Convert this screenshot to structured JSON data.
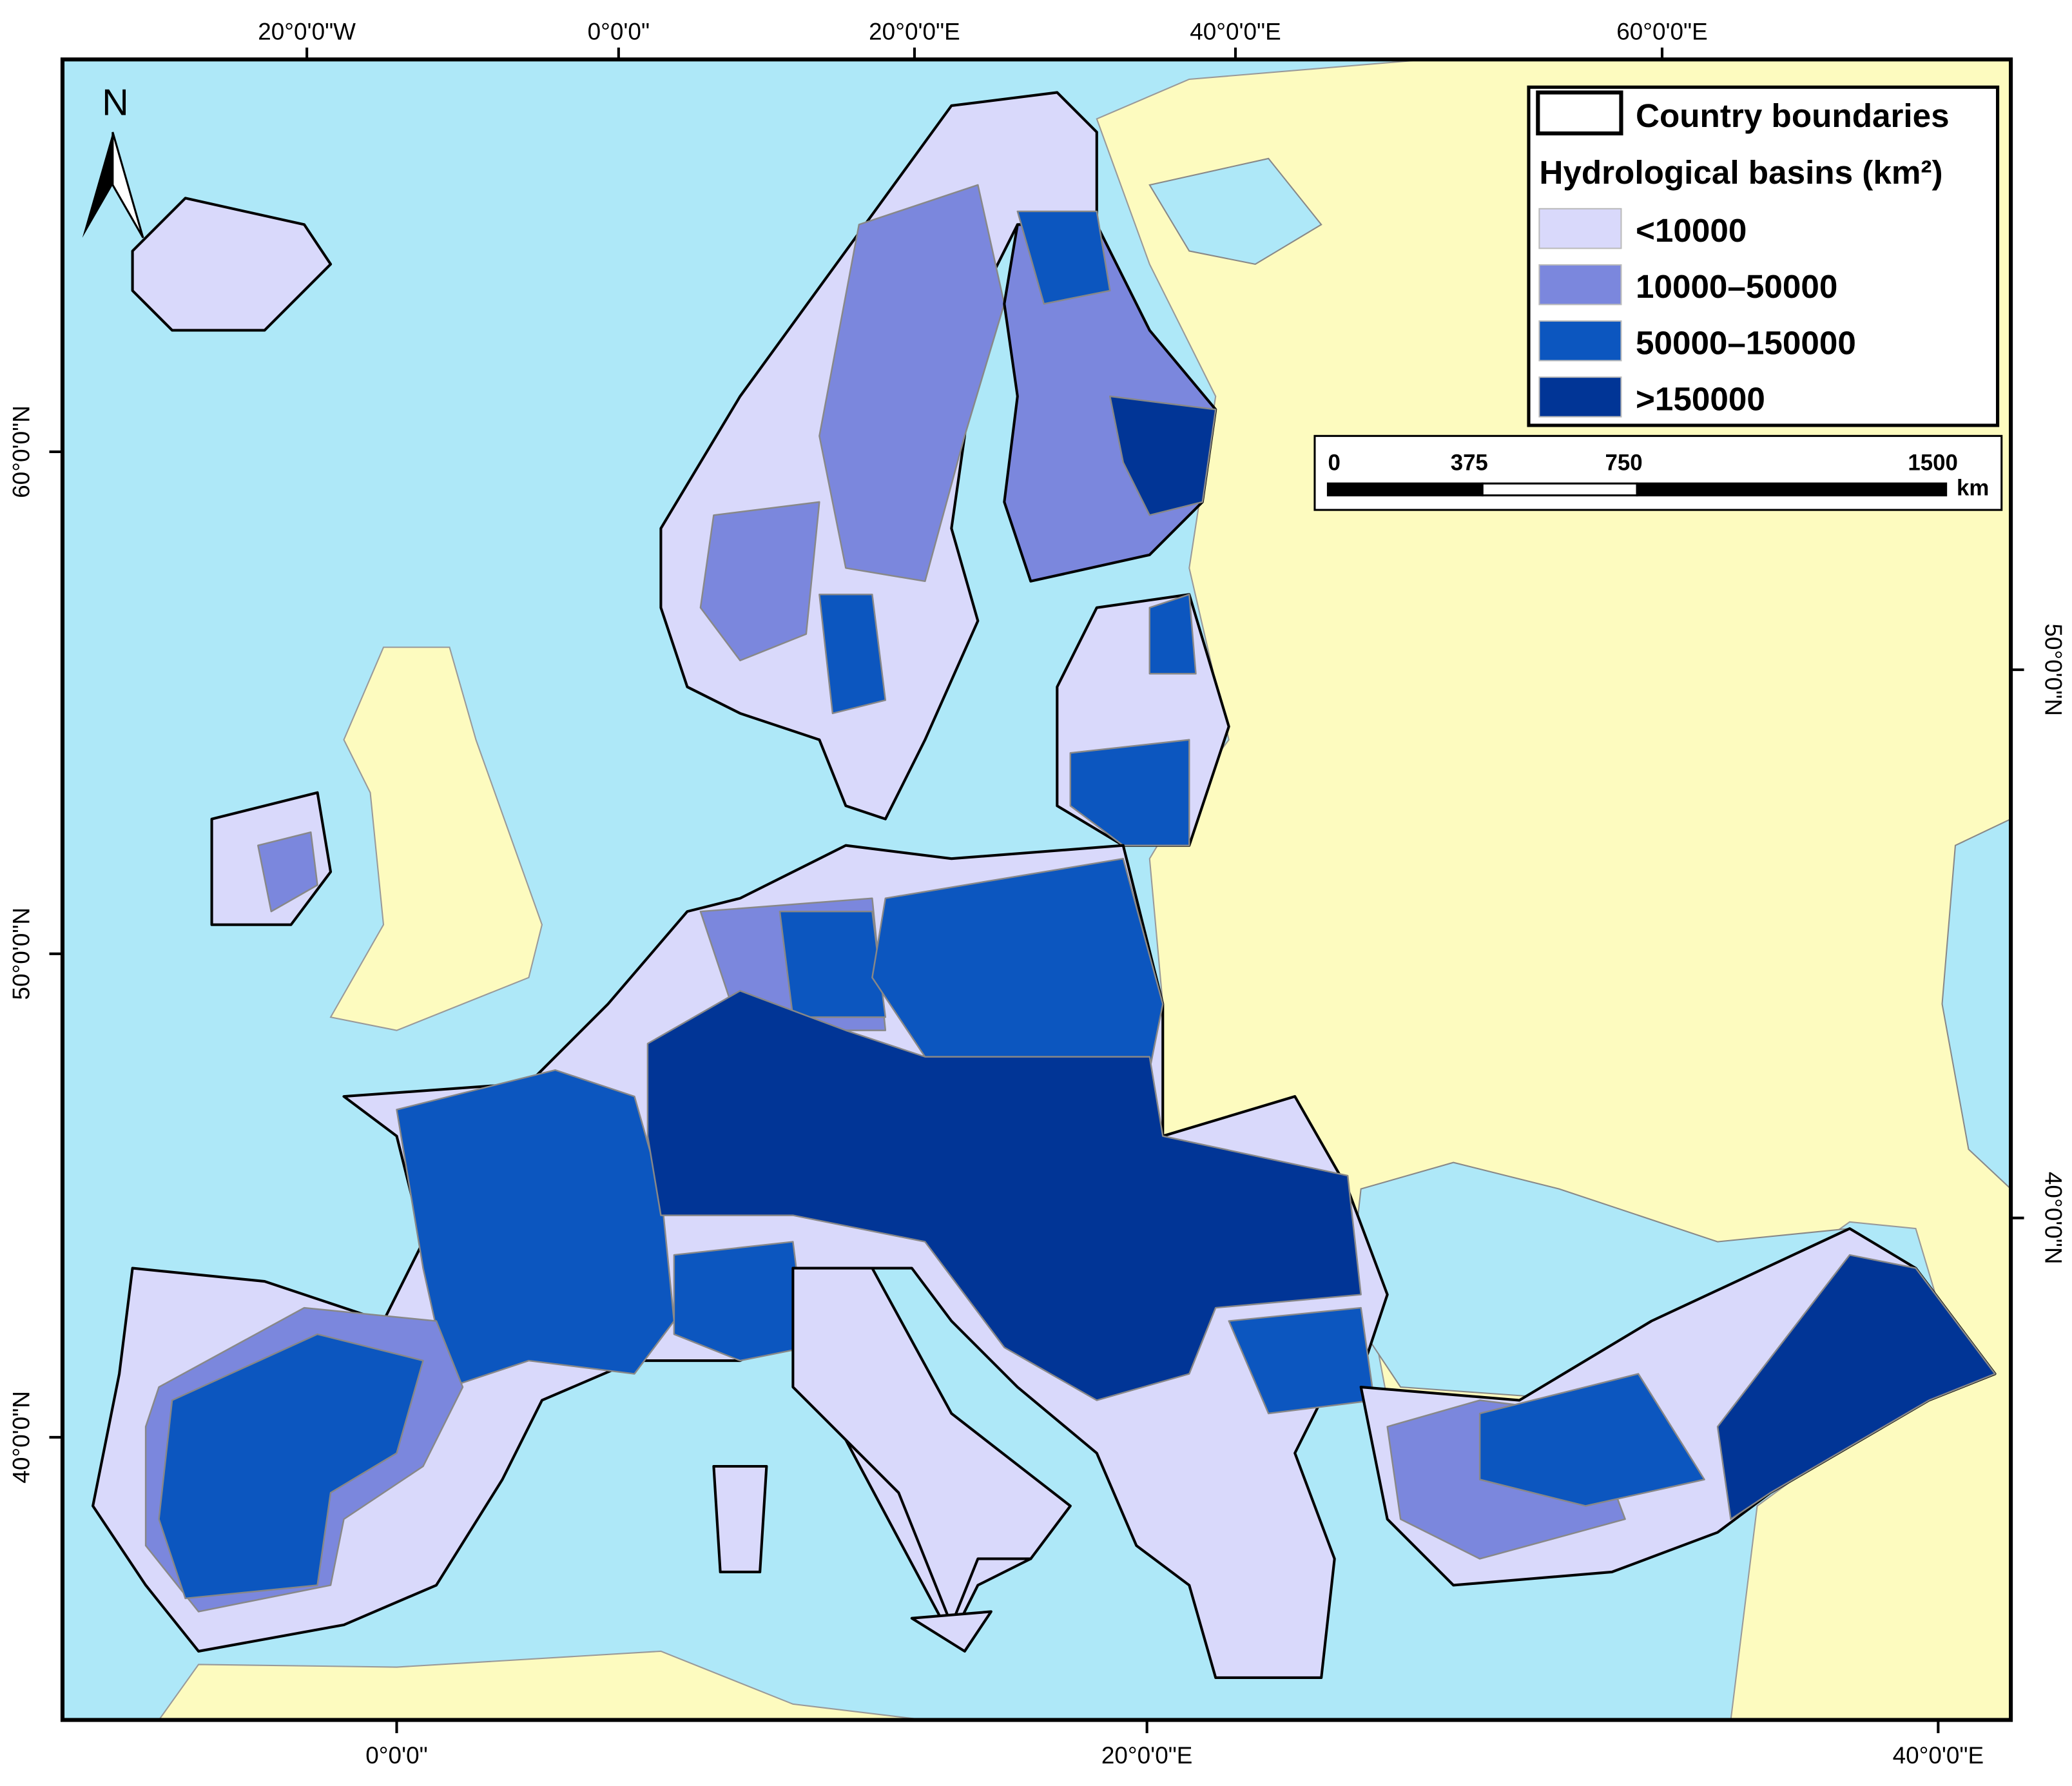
{
  "graticule": {
    "top": [
      "20°0'0\"W",
      "0°0'0\"",
      "20°0'0\"E",
      "40°0'0\"E",
      "60°0'0\"E"
    ],
    "bottom": [
      "0°0'0\"",
      "20°0'0\"E",
      "40°0'0\"E"
    ],
    "left": [
      "60°0'0\"N",
      "50°0'0\"N",
      "40°0'0\"N"
    ],
    "right": [
      "50°0'0\"N",
      "40°0'0\"N"
    ]
  },
  "north": "N",
  "legend": {
    "boundary_label": "Country boundaries",
    "title": "Hydrological basins (km²)",
    "items": [
      {
        "label": "<10000",
        "color": "#d9d9fb"
      },
      {
        "label": "10000–50000",
        "color": "#7b87dd"
      },
      {
        "label": "50000–150000",
        "color": "#0c56bf"
      },
      {
        "label": ">150000",
        "color": "#013596"
      }
    ]
  },
  "scale_bar": {
    "ticks": [
      0,
      375,
      750,
      1500
    ],
    "unit": "km"
  }
}
